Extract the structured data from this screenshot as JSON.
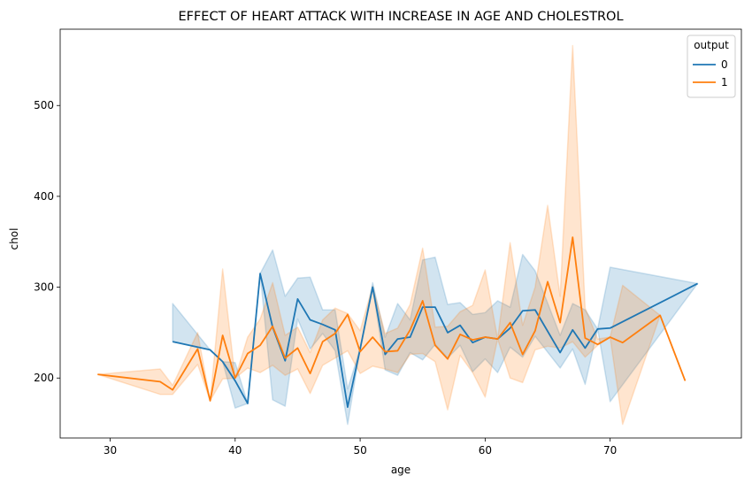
{
  "chart_data": {
    "type": "line",
    "title": "EFFECT OF HEART ATTACK WITH INCREASE IN AGE AND CHOLESTROL",
    "xlabel": "age",
    "ylabel": "chol",
    "xlim": [
      26,
      80.5
    ],
    "ylim": [
      134,
      584
    ],
    "xticks": [
      30,
      40,
      50,
      60,
      70
    ],
    "yticks": [
      200,
      300,
      400,
      500
    ],
    "grid": false,
    "legend": {
      "title": "output",
      "placement": "top-right"
    },
    "series": [
      {
        "name": "0",
        "color": "#1f77b4",
        "points": [
          {
            "x": 35,
            "y": 240,
            "lo": 240,
            "hi": 282
          },
          {
            "x": 38,
            "y": 231,
            "lo": 231,
            "hi": 231
          },
          {
            "x": 39,
            "y": 218,
            "lo": 218,
            "hi": 218
          },
          {
            "x": 40,
            "y": 197,
            "lo": 167,
            "hi": 217
          },
          {
            "x": 41,
            "y": 172,
            "lo": 172,
            "hi": 172
          },
          {
            "x": 42,
            "y": 315,
            "lo": 315,
            "hi": 315
          },
          {
            "x": 43,
            "y": 256,
            "lo": 176,
            "hi": 341
          },
          {
            "x": 44,
            "y": 219,
            "lo": 169,
            "hi": 290
          },
          {
            "x": 45,
            "y": 287,
            "lo": 265,
            "hi": 310
          },
          {
            "x": 46,
            "y": 264,
            "lo": 232,
            "hi": 311
          },
          {
            "x": 47,
            "y": 259,
            "lo": 249,
            "hi": 275
          },
          {
            "x": 48,
            "y": 253,
            "lo": 230,
            "hi": 275
          },
          {
            "x": 49,
            "y": 168,
            "lo": 149,
            "hi": 188
          },
          {
            "x": 50,
            "y": 232,
            "lo": 232,
            "hi": 232
          },
          {
            "x": 51,
            "y": 300,
            "lo": 300,
            "hi": 305
          },
          {
            "x": 52,
            "y": 226,
            "lo": 209,
            "hi": 245
          },
          {
            "x": 53,
            "y": 243,
            "lo": 203,
            "hi": 282
          },
          {
            "x": 54,
            "y": 245,
            "lo": 228,
            "hi": 264
          },
          {
            "x": 55,
            "y": 278,
            "lo": 220,
            "hi": 330
          },
          {
            "x": 56,
            "y": 278,
            "lo": 237,
            "hi": 333
          },
          {
            "x": 57,
            "y": 250,
            "lo": 222,
            "hi": 281
          },
          {
            "x": 58,
            "y": 258,
            "lo": 236,
            "hi": 283
          },
          {
            "x": 59,
            "y": 239,
            "lo": 207,
            "hi": 270
          },
          {
            "x": 60,
            "y": 245,
            "lo": 221,
            "hi": 272
          },
          {
            "x": 61,
            "y": 243,
            "lo": 206,
            "hi": 285
          },
          {
            "x": 62,
            "y": 255,
            "lo": 234,
            "hi": 278
          },
          {
            "x": 63,
            "y": 274,
            "lo": 223,
            "hi": 336
          },
          {
            "x": 64,
            "y": 275,
            "lo": 246,
            "hi": 318
          },
          {
            "x": 66,
            "y": 228,
            "lo": 211,
            "hi": 247
          },
          {
            "x": 67,
            "y": 253,
            "lo": 232,
            "hi": 282
          },
          {
            "x": 68,
            "y": 233,
            "lo": 193,
            "hi": 275
          },
          {
            "x": 69,
            "y": 254,
            "lo": 254,
            "hi": 254
          },
          {
            "x": 70,
            "y": 255,
            "lo": 174,
            "hi": 322
          },
          {
            "x": 77,
            "y": 304,
            "lo": 304,
            "hi": 304
          }
        ]
      },
      {
        "name": "1",
        "color": "#ff7f0e",
        "points": [
          {
            "x": 29,
            "y": 204,
            "lo": 204,
            "hi": 204
          },
          {
            "x": 34,
            "y": 196,
            "lo": 182,
            "hi": 210
          },
          {
            "x": 35,
            "y": 187,
            "lo": 182,
            "hi": 192
          },
          {
            "x": 37,
            "y": 232,
            "lo": 215,
            "hi": 250
          },
          {
            "x": 38,
            "y": 175,
            "lo": 175,
            "hi": 175
          },
          {
            "x": 39,
            "y": 247,
            "lo": 199,
            "hi": 320
          },
          {
            "x": 40,
            "y": 200,
            "lo": 200,
            "hi": 200
          },
          {
            "x": 41,
            "y": 227,
            "lo": 211,
            "hi": 245
          },
          {
            "x": 42,
            "y": 236,
            "lo": 206,
            "hi": 265
          },
          {
            "x": 43,
            "y": 257,
            "lo": 214,
            "hi": 305
          },
          {
            "x": 44,
            "y": 222,
            "lo": 203,
            "hi": 247
          },
          {
            "x": 45,
            "y": 233,
            "lo": 210,
            "hi": 256
          },
          {
            "x": 46,
            "y": 205,
            "lo": 183,
            "hi": 228
          },
          {
            "x": 47,
            "y": 240,
            "lo": 214,
            "hi": 264
          },
          {
            "x": 48,
            "y": 249,
            "lo": 222,
            "hi": 277
          },
          {
            "x": 49,
            "y": 270,
            "lo": 230,
            "hi": 271
          },
          {
            "x": 50,
            "y": 229,
            "lo": 205,
            "hi": 252
          },
          {
            "x": 51,
            "y": 245,
            "lo": 213,
            "hi": 301
          },
          {
            "x": 52,
            "y": 229,
            "lo": 210,
            "hi": 249
          },
          {
            "x": 53,
            "y": 230,
            "lo": 206,
            "hi": 255
          },
          {
            "x": 54,
            "y": 253,
            "lo": 226,
            "hi": 281
          },
          {
            "x": 55,
            "y": 285,
            "lo": 227,
            "hi": 343
          },
          {
            "x": 56,
            "y": 236,
            "lo": 218,
            "hi": 256
          },
          {
            "x": 57,
            "y": 221,
            "lo": 165,
            "hi": 257
          },
          {
            "x": 58,
            "y": 248,
            "lo": 225,
            "hi": 273
          },
          {
            "x": 59,
            "y": 242,
            "lo": 206,
            "hi": 280
          },
          {
            "x": 60,
            "y": 245,
            "lo": 179,
            "hi": 319
          },
          {
            "x": 61,
            "y": 243,
            "lo": 243,
            "hi": 243
          },
          {
            "x": 62,
            "y": 261,
            "lo": 200,
            "hi": 349
          },
          {
            "x": 63,
            "y": 226,
            "lo": 195,
            "hi": 258
          },
          {
            "x": 64,
            "y": 252,
            "lo": 231,
            "hi": 300
          },
          {
            "x": 65,
            "y": 306,
            "lo": 235,
            "hi": 390
          },
          {
            "x": 66,
            "y": 261,
            "lo": 233,
            "hi": 290
          },
          {
            "x": 67,
            "y": 355,
            "lo": 240,
            "hi": 566
          },
          {
            "x": 68,
            "y": 244,
            "lo": 223,
            "hi": 277
          },
          {
            "x": 69,
            "y": 237,
            "lo": 236,
            "hi": 243
          },
          {
            "x": 70,
            "y": 245,
            "lo": 245,
            "hi": 245
          },
          {
            "x": 71,
            "y": 239,
            "lo": 149,
            "hi": 302
          },
          {
            "x": 74,
            "y": 269,
            "lo": 269,
            "hi": 269
          },
          {
            "x": 76,
            "y": 197,
            "lo": 197,
            "hi": 197
          }
        ]
      }
    ]
  }
}
